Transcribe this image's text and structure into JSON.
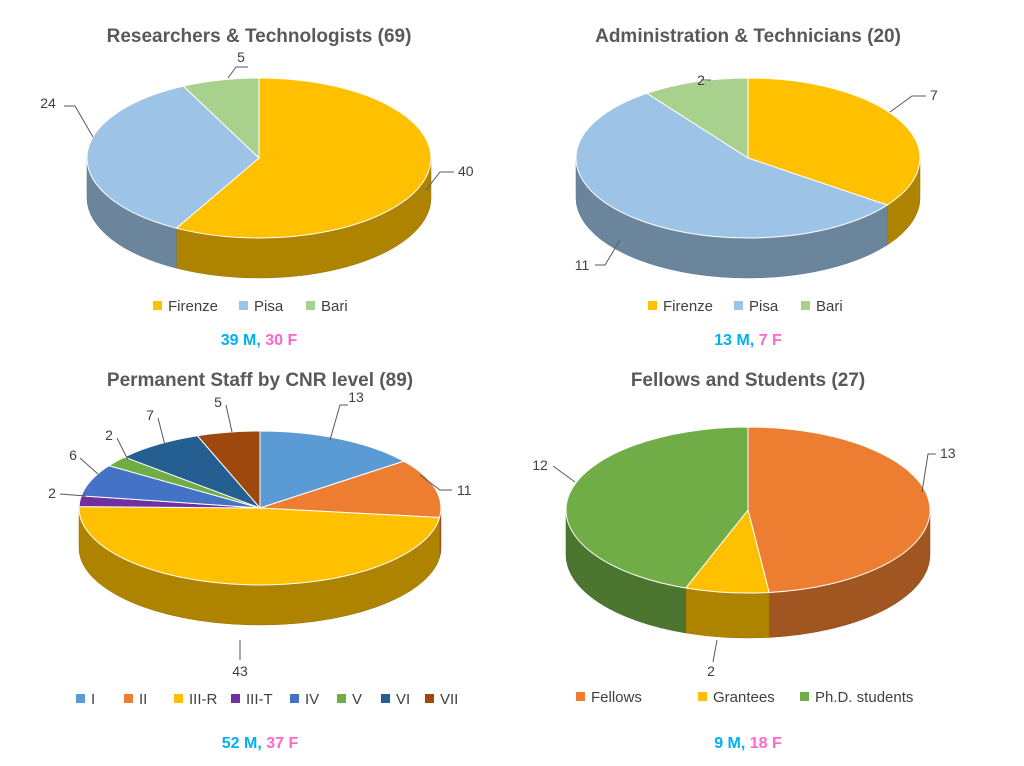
{
  "chart_data": [
    {
      "type": "pie",
      "style": "3d",
      "title": "Researchers & Technologists (69)",
      "categories": [
        "Firenze",
        "Pisa",
        "Bari"
      ],
      "values": [
        40,
        24,
        5
      ],
      "colors": [
        "#FFC000",
        "#9DC3E6",
        "#A9D18E"
      ],
      "legend": [
        "Firenze",
        "Pisa",
        "Bari"
      ],
      "legend_position": "bottom",
      "gender": {
        "male": "39 M",
        "sep": ",",
        "female": "30 F"
      }
    },
    {
      "type": "pie",
      "style": "3d",
      "title": "Administration & Technicians (20)",
      "categories": [
        "Firenze",
        "Pisa",
        "Bari"
      ],
      "values": [
        7,
        11,
        2
      ],
      "colors": [
        "#FFC000",
        "#9DC3E6",
        "#A9D18E"
      ],
      "legend": [
        "Firenze",
        "Pisa",
        "Bari"
      ],
      "legend_position": "bottom",
      "gender": {
        "male": "13 M",
        "sep": ",",
        "female": "7 F"
      }
    },
    {
      "type": "pie",
      "style": "3d",
      "title": "Permanent Staff by CNR level (89)",
      "categories": [
        "I",
        "II",
        "III-R",
        "III-T",
        "IV",
        "V",
        "VI",
        "VII"
      ],
      "values": [
        13,
        11,
        43,
        2,
        6,
        2,
        7,
        5
      ],
      "colors": [
        "#5B9BD5",
        "#ED7D31",
        "#FFC000",
        "#7030A0",
        "#4472C4",
        "#70AD47",
        "#255E91",
        "#9E480E"
      ],
      "legend": [
        "I",
        "II",
        "III-R",
        "III-T",
        "IV",
        "V",
        "VI",
        "VII"
      ],
      "legend_position": "bottom",
      "gender": {
        "male": "52 M",
        "sep": ",",
        "female": "37 F"
      }
    },
    {
      "type": "pie",
      "style": "3d",
      "title": "Fellows and Students (27)",
      "categories": [
        "Fellows",
        "Grantees",
        "Ph.D. students"
      ],
      "values": [
        13,
        2,
        12
      ],
      "colors": [
        "#ED7D31",
        "#FFC000",
        "#70AD47"
      ],
      "legend": [
        "Fellows",
        "Grantees",
        "Ph.D. students"
      ],
      "legend_position": "bottom",
      "gender": {
        "male": "9 M",
        "sep": ",",
        "female": "18 F"
      }
    }
  ],
  "colors": {
    "male": "#00B0F0",
    "female": "#FF66CC"
  }
}
